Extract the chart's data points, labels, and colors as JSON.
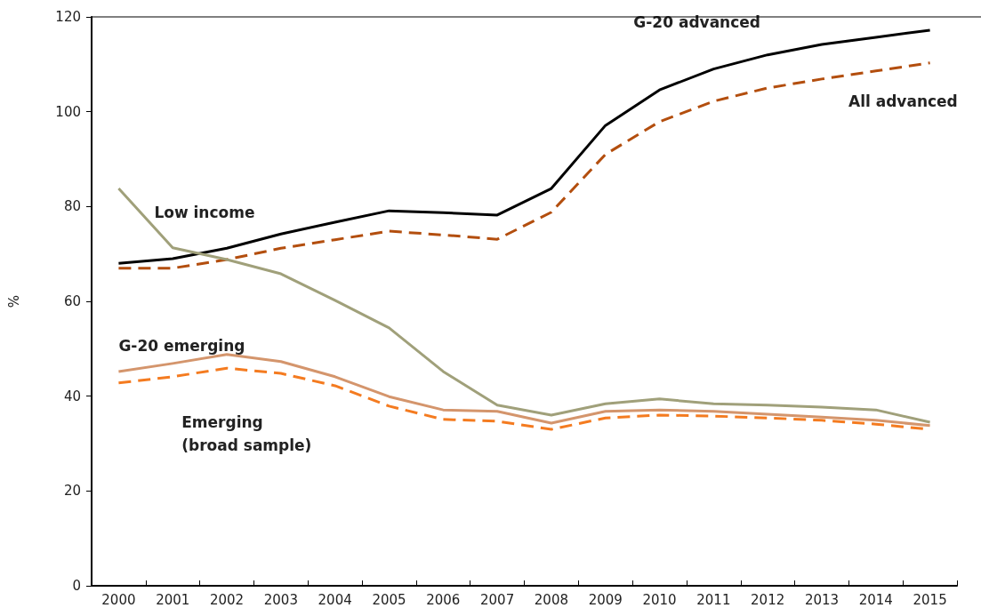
{
  "chart_data": {
    "type": "line",
    "ylabel": "%",
    "categories": [
      "2000",
      "2001",
      "2002",
      "2003",
      "2004",
      "2005",
      "2006",
      "2007",
      "2008",
      "2009",
      "2010",
      "2011",
      "2012",
      "2013",
      "2014",
      "2015"
    ],
    "ylim": [
      0,
      120
    ],
    "yticks": [
      0,
      20,
      40,
      60,
      80,
      100,
      120
    ],
    "grid": false,
    "legend": false,
    "marker": "none",
    "series": [
      {
        "name": "G-20 advanced",
        "color": "#000000",
        "line_style": "solid",
        "values": [
          68,
          69,
          71.2,
          74.2,
          76.7,
          79.1,
          78.7,
          78.2,
          83.8,
          97.1,
          104.6,
          109,
          112,
          114.2,
          115.7,
          117.2
        ]
      },
      {
        "name": "All advanced",
        "color": "#b34e0e",
        "line_style": "dashed",
        "values": [
          67,
          67,
          68.8,
          71.2,
          73,
          74.8,
          74,
          73.1,
          78.8,
          91,
          97.9,
          102.2,
          105,
          106.9,
          108.6,
          110.3
        ]
      },
      {
        "name": "Low income",
        "color": "#a0a07a",
        "line_style": "solid",
        "values": [
          83.8,
          71.3,
          68.8,
          65.8,
          60.2,
          54.4,
          45.2,
          38.1,
          36,
          38.4,
          39.4,
          38.4,
          38.1,
          37.7,
          37.1,
          34.5
        ]
      },
      {
        "name": "G-20 emerging",
        "color": "#d4956c",
        "line_style": "solid",
        "values": [
          45.2,
          46.9,
          48.8,
          47.3,
          44.1,
          39.9,
          37.1,
          36.8,
          34.3,
          36.8,
          37.1,
          36.8,
          36.2,
          35.6,
          34.9,
          33.8
        ]
      },
      {
        "name": "Emerging\n(broad sample)",
        "color": "#f47b20",
        "line_style": "dashed",
        "values": [
          42.8,
          44.1,
          45.9,
          44.8,
          42.2,
          37.9,
          35.1,
          34.7,
          33,
          35.4,
          36,
          35.8,
          35.4,
          34.9,
          34.1,
          33
        ]
      }
    ]
  }
}
